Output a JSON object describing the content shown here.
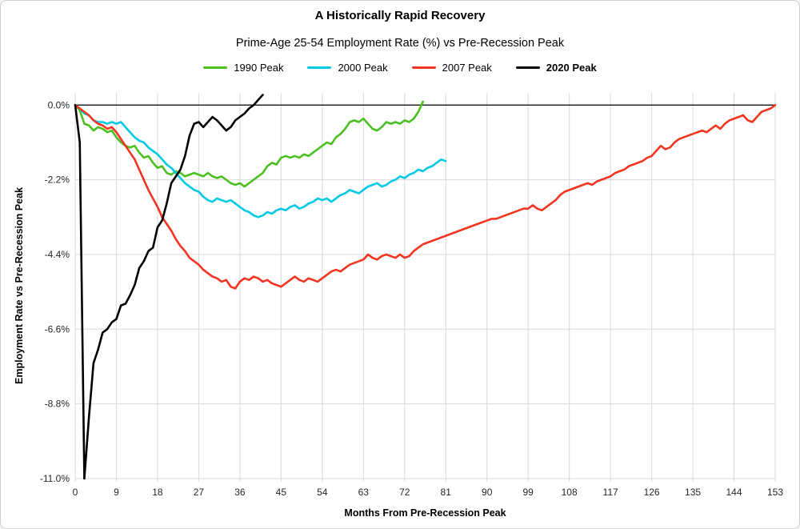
{
  "colors": {
    "background": "#ffffff",
    "border": "#cfcfcf",
    "grid": "#d9d9d9",
    "zero_line": "#000000"
  },
  "chart_data": {
    "type": "line",
    "title": "A Historically Rapid Recovery",
    "subtitle": "Prime-Age 25-54 Employment Rate (%) vs Pre-Recession Peak",
    "xlabel": "Months From Pre-Recession Peak",
    "ylabel": "Employment Rate vs Pre-Recession Peak",
    "xlim": [
      0,
      153
    ],
    "ylim": [
      -11.0,
      0.36
    ],
    "x_ticks": [
      0,
      9,
      18,
      27,
      36,
      45,
      54,
      63,
      72,
      81,
      90,
      99,
      108,
      117,
      126,
      135,
      144,
      153
    ],
    "y_ticks": [
      0.0,
      -2.2,
      -4.4,
      -6.6,
      -8.8,
      -11.0
    ],
    "y_tick_labels": [
      "0.0%",
      "-2.2%",
      "-4.4%",
      "-6.6%",
      "-8.8%",
      "-11.0%"
    ],
    "grid": true,
    "legend_position": "top",
    "series": [
      {
        "name": "1990 Peak",
        "color": "#4cbf21",
        "bold": false,
        "x_start": 0,
        "x_step": 1,
        "values": [
          0,
          -0.15,
          -0.55,
          -0.6,
          -0.75,
          -0.65,
          -0.7,
          -0.8,
          -0.75,
          -0.95,
          -1.1,
          -1.2,
          -1.25,
          -1.2,
          -1.4,
          -1.55,
          -1.5,
          -1.7,
          -1.85,
          -1.8,
          -2.0,
          -2.05,
          -1.95,
          -2.0,
          -2.1,
          -2.05,
          -2.0,
          -2.05,
          -2.1,
          -2.0,
          -2.1,
          -2.15,
          -2.1,
          -2.2,
          -2.3,
          -2.35,
          -2.3,
          -2.4,
          -2.3,
          -2.2,
          -2.1,
          -2.0,
          -1.8,
          -1.7,
          -1.75,
          -1.55,
          -1.5,
          -1.55,
          -1.5,
          -1.55,
          -1.45,
          -1.5,
          -1.4,
          -1.3,
          -1.2,
          -1.1,
          -1.15,
          -0.95,
          -0.85,
          -0.7,
          -0.5,
          -0.45,
          -0.5,
          -0.4,
          -0.55,
          -0.7,
          -0.75,
          -0.65,
          -0.5,
          -0.55,
          -0.5,
          -0.55,
          -0.45,
          -0.5,
          -0.4,
          -0.2,
          0.1
        ]
      },
      {
        "name": "2000 Peak",
        "color": "#00c9e5",
        "bold": false,
        "x_start": 0,
        "x_step": 1,
        "values": [
          0,
          -0.1,
          -0.25,
          -0.3,
          -0.45,
          -0.5,
          -0.5,
          -0.55,
          -0.5,
          -0.55,
          -0.5,
          -0.65,
          -0.8,
          -0.95,
          -1.05,
          -1.1,
          -1.25,
          -1.35,
          -1.45,
          -1.6,
          -1.75,
          -1.85,
          -2.0,
          -2.15,
          -2.3,
          -2.4,
          -2.5,
          -2.55,
          -2.7,
          -2.8,
          -2.85,
          -2.75,
          -2.8,
          -2.85,
          -2.8,
          -2.9,
          -3.0,
          -3.1,
          -3.15,
          -3.25,
          -3.3,
          -3.25,
          -3.15,
          -3.2,
          -3.1,
          -3.05,
          -3.1,
          -3.0,
          -2.95,
          -3.05,
          -3.0,
          -2.9,
          -2.85,
          -2.75,
          -2.8,
          -2.75,
          -2.85,
          -2.75,
          -2.65,
          -2.6,
          -2.5,
          -2.55,
          -2.6,
          -2.5,
          -2.4,
          -2.35,
          -2.3,
          -2.4,
          -2.35,
          -2.25,
          -2.2,
          -2.1,
          -2.15,
          -2.05,
          -2.0,
          -1.9,
          -1.95,
          -1.85,
          -1.8,
          -1.7,
          -1.6,
          -1.65
        ]
      },
      {
        "name": "2007 Peak",
        "color": "#f23521",
        "bold": false,
        "x_start": 0,
        "x_step": 1,
        "values": [
          0,
          -0.1,
          -0.2,
          -0.3,
          -0.45,
          -0.55,
          -0.6,
          -0.7,
          -0.65,
          -0.8,
          -1.0,
          -1.2,
          -1.4,
          -1.6,
          -1.9,
          -2.2,
          -2.5,
          -2.75,
          -3.0,
          -3.3,
          -3.5,
          -3.7,
          -3.95,
          -4.15,
          -4.3,
          -4.5,
          -4.6,
          -4.7,
          -4.85,
          -4.95,
          -5.05,
          -5.1,
          -5.2,
          -5.15,
          -5.35,
          -5.4,
          -5.2,
          -5.1,
          -5.15,
          -5.05,
          -5.1,
          -5.2,
          -5.15,
          -5.25,
          -5.3,
          -5.35,
          -5.25,
          -5.15,
          -5.05,
          -5.15,
          -5.2,
          -5.1,
          -5.15,
          -5.2,
          -5.1,
          -5.0,
          -4.9,
          -4.85,
          -4.9,
          -4.8,
          -4.7,
          -4.65,
          -4.6,
          -4.55,
          -4.4,
          -4.5,
          -4.55,
          -4.45,
          -4.4,
          -4.45,
          -4.5,
          -4.4,
          -4.5,
          -4.45,
          -4.3,
          -4.2,
          -4.1,
          -4.05,
          -4.0,
          -3.95,
          -3.9,
          -3.85,
          -3.8,
          -3.75,
          -3.7,
          -3.65,
          -3.6,
          -3.55,
          -3.5,
          -3.45,
          -3.4,
          -3.35,
          -3.35,
          -3.3,
          -3.25,
          -3.2,
          -3.15,
          -3.1,
          -3.05,
          -3.05,
          -2.95,
          -3.05,
          -3.1,
          -3.0,
          -2.9,
          -2.8,
          -2.65,
          -2.55,
          -2.5,
          -2.45,
          -2.4,
          -2.35,
          -2.3,
          -2.35,
          -2.25,
          -2.2,
          -2.15,
          -2.1,
          -2.0,
          -1.95,
          -1.9,
          -1.8,
          -1.75,
          -1.7,
          -1.65,
          -1.55,
          -1.5,
          -1.35,
          -1.2,
          -1.3,
          -1.25,
          -1.1,
          -1.0,
          -0.95,
          -0.9,
          -0.85,
          -0.8,
          -0.75,
          -0.8,
          -0.7,
          -0.6,
          -0.7,
          -0.55,
          -0.45,
          -0.4,
          -0.35,
          -0.3,
          -0.45,
          -0.5,
          -0.35,
          -0.2,
          -0.15,
          -0.1,
          0.0
        ]
      },
      {
        "name": "2020 Peak",
        "color": "#000000",
        "bold": true,
        "x_start": 0,
        "x_step": 1,
        "values": [
          0,
          -1.1,
          -11.0,
          -9.2,
          -7.6,
          -7.2,
          -6.7,
          -6.6,
          -6.4,
          -6.3,
          -5.9,
          -5.85,
          -5.6,
          -5.3,
          -4.8,
          -4.6,
          -4.3,
          -4.2,
          -3.6,
          -3.4,
          -2.9,
          -2.3,
          -2.1,
          -1.9,
          -1.5,
          -0.9,
          -0.55,
          -0.5,
          -0.65,
          -0.5,
          -0.35,
          -0.45,
          -0.6,
          -0.75,
          -0.65,
          -0.45,
          -0.35,
          -0.25,
          -0.1,
          0.0,
          0.15,
          0.3
        ]
      }
    ]
  }
}
